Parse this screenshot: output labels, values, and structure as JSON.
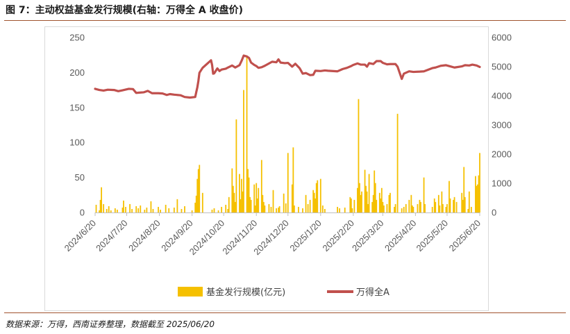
{
  "header": {
    "title": "图 7：主动权益基金发行规模(右轴：万得全 A 收盘价)"
  },
  "footer": {
    "source": "数据来源：万得，西南证券整理，数据截至 2025/06/20"
  },
  "chart_data": {
    "type": "bar+line",
    "x_tick_labels": [
      "2024/6/20",
      "2024/7/20",
      "2024/8/20",
      "2024/9/20",
      "2024/10/20",
      "2024/11/20",
      "2024/12/20",
      "2025/1/20",
      "2025/2/20",
      "2025/3/20",
      "2025/4/20",
      "2025/5/20",
      "2025/6/20"
    ],
    "y_left": {
      "ticks": [
        0,
        50,
        100,
        150,
        200,
        250
      ],
      "range": [
        0,
        250
      ]
    },
    "y_right": {
      "ticks": [
        0,
        1000,
        2000,
        3000,
        4000,
        5000,
        6000
      ],
      "range": [
        0,
        6000
      ]
    },
    "legend": {
      "position": "bottom"
    },
    "grid": false,
    "series": [
      {
        "name": "基金发行规模(亿元)",
        "type": "bar",
        "axis": "left",
        "color": "#f5c000",
        "points": [
          [
            "2024/6/21",
            11
          ],
          [
            "2024/6/24",
            3
          ],
          [
            "2024/6/25",
            18
          ],
          [
            "2024/6/26",
            36
          ],
          [
            "2024/6/28",
            12
          ],
          [
            "2024/7/1",
            5
          ],
          [
            "2024/7/3",
            9
          ],
          [
            "2024/7/5",
            3
          ],
          [
            "2024/7/9",
            6
          ],
          [
            "2024/7/11",
            4
          ],
          [
            "2024/7/16",
            7
          ],
          [
            "2024/7/17",
            17
          ],
          [
            "2024/7/19",
            8
          ],
          [
            "2024/7/23",
            12
          ],
          [
            "2024/7/25",
            5
          ],
          [
            "2024/7/29",
            9
          ],
          [
            "2024/7/31",
            6
          ],
          [
            "2024/8/2",
            10
          ],
          [
            "2024/8/6",
            4
          ],
          [
            "2024/8/8",
            7
          ],
          [
            "2024/8/12",
            16
          ],
          [
            "2024/8/14",
            5
          ],
          [
            "2024/8/19",
            8
          ],
          [
            "2024/8/21",
            4
          ],
          [
            "2024/8/26",
            11
          ],
          [
            "2024/8/29",
            6
          ],
          [
            "2024/9/3",
            7
          ],
          [
            "2024/9/6",
            19
          ],
          [
            "2024/9/10",
            5
          ],
          [
            "2024/9/13",
            9
          ],
          [
            "2024/9/20",
            3
          ],
          [
            "2024/9/23",
            14
          ],
          [
            "2024/9/24",
            24
          ],
          [
            "2024/9/25",
            48
          ],
          [
            "2024/9/26",
            62
          ],
          [
            "2024/9/27",
            68
          ],
          [
            "2024/9/30",
            28
          ],
          [
            "2024/10/9",
            4
          ],
          [
            "2024/10/11",
            6
          ],
          [
            "2024/10/15",
            3
          ],
          [
            "2024/10/18",
            8
          ],
          [
            "2024/10/22",
            11
          ],
          [
            "2024/10/24",
            5
          ],
          [
            "2024/10/25",
            22
          ],
          [
            "2024/10/28",
            63
          ],
          [
            "2024/10/29",
            38
          ],
          [
            "2024/10/30",
            28
          ],
          [
            "2024/10/31",
            15
          ],
          [
            "2024/11/1",
            133
          ],
          [
            "2024/11/4",
            55
          ],
          [
            "2024/11/5",
            19
          ],
          [
            "2024/11/6",
            48
          ],
          [
            "2024/11/7",
            30
          ],
          [
            "2024/11/8",
            175
          ],
          [
            "2024/11/11",
            222
          ],
          [
            "2024/11/12",
            62
          ],
          [
            "2024/11/13",
            50
          ],
          [
            "2024/11/14",
            22
          ],
          [
            "2024/11/15",
            18
          ],
          [
            "2024/11/18",
            40
          ],
          [
            "2024/11/19",
            10
          ],
          [
            "2024/11/20",
            42
          ],
          [
            "2024/11/21",
            20
          ],
          [
            "2024/11/22",
            35
          ],
          [
            "2024/11/25",
            75
          ],
          [
            "2024/11/26",
            25
          ],
          [
            "2024/11/27",
            15
          ],
          [
            "2024/11/28",
            10
          ],
          [
            "2024/12/2",
            12
          ],
          [
            "2024/12/4",
            8
          ],
          [
            "2024/12/6",
            32
          ],
          [
            "2024/12/9",
            6
          ],
          [
            "2024/12/11",
            7
          ],
          [
            "2024/12/12",
            9
          ],
          [
            "2024/12/16",
            27
          ],
          [
            "2024/12/18",
            13
          ],
          [
            "2024/12/20",
            85
          ],
          [
            "2024/12/24",
            40
          ],
          [
            "2024/12/25",
            93
          ],
          [
            "2024/12/26",
            10
          ],
          [
            "2024/12/30",
            8
          ],
          [
            "2025/1/3",
            6
          ],
          [
            "2025/1/6",
            25
          ],
          [
            "2025/1/8",
            12
          ],
          [
            "2025/1/10",
            18
          ],
          [
            "2025/1/13",
            32
          ],
          [
            "2025/1/14",
            28
          ],
          [
            "2025/1/15",
            20
          ],
          [
            "2025/1/16",
            42
          ],
          [
            "2025/1/17",
            46
          ],
          [
            "2025/1/20",
            48
          ],
          [
            "2025/1/22",
            10
          ],
          [
            "2025/1/24",
            5
          ],
          [
            "2025/2/5",
            8
          ],
          [
            "2025/2/7",
            6
          ],
          [
            "2025/2/12",
            7
          ],
          [
            "2025/2/17",
            22
          ],
          [
            "2025/2/18",
            20
          ],
          [
            "2025/2/19",
            6
          ],
          [
            "2025/2/21",
            18
          ],
          [
            "2025/2/24",
            35
          ],
          [
            "2025/2/25",
            162
          ],
          [
            "2025/2/26",
            42
          ],
          [
            "2025/2/27",
            25
          ],
          [
            "2025/2/28",
            30
          ],
          [
            "2025/3/3",
            61
          ],
          [
            "2025/3/4",
            38
          ],
          [
            "2025/3/5",
            30
          ],
          [
            "2025/3/6",
            12
          ],
          [
            "2025/3/7",
            55
          ],
          [
            "2025/3/10",
            15
          ],
          [
            "2025/3/11",
            25
          ],
          [
            "2025/3/12",
            60
          ],
          [
            "2025/3/13",
            42
          ],
          [
            "2025/3/14",
            18
          ],
          [
            "2025/3/17",
            28
          ],
          [
            "2025/3/18",
            20
          ],
          [
            "2025/3/19",
            35
          ],
          [
            "2025/3/20",
            15
          ],
          [
            "2025/3/21",
            10
          ],
          [
            "2025/3/24",
            12
          ],
          [
            "2025/3/26",
            25
          ],
          [
            "2025/3/27",
            28
          ],
          [
            "2025/3/31",
            8
          ],
          [
            "2025/4/1",
            12
          ],
          [
            "2025/4/3",
            141
          ],
          [
            "2025/4/7",
            6
          ],
          [
            "2025/4/9",
            8
          ],
          [
            "2025/4/11",
            12
          ],
          [
            "2025/4/14",
            18
          ],
          [
            "2025/4/16",
            25
          ],
          [
            "2025/4/17",
            10
          ],
          [
            "2025/4/18",
            8
          ],
          [
            "2025/4/22",
            12
          ],
          [
            "2025/4/24",
            18
          ],
          [
            "2025/4/25",
            15
          ],
          [
            "2025/4/28",
            50
          ],
          [
            "2025/4/29",
            12
          ],
          [
            "2025/5/6",
            8
          ],
          [
            "2025/5/8",
            20
          ],
          [
            "2025/5/9",
            15
          ],
          [
            "2025/5/12",
            25
          ],
          [
            "2025/5/13",
            10
          ],
          [
            "2025/5/15",
            30
          ],
          [
            "2025/5/16",
            12
          ],
          [
            "2025/5/19",
            8
          ],
          [
            "2025/5/20",
            12
          ],
          [
            "2025/5/22",
            45
          ],
          [
            "2025/5/23",
            20
          ],
          [
            "2025/5/26",
            18
          ],
          [
            "2025/5/27",
            22
          ],
          [
            "2025/5/29",
            15
          ],
          [
            "2025/6/3",
            28
          ],
          [
            "2025/6/4",
            18
          ],
          [
            "2025/6/5",
            65
          ],
          [
            "2025/6/6",
            22
          ],
          [
            "2025/6/9",
            5
          ],
          [
            "2025/6/10",
            30
          ],
          [
            "2025/6/12",
            8
          ],
          [
            "2025/6/16",
            52
          ],
          [
            "2025/6/17",
            38
          ],
          [
            "2025/6/18",
            40
          ],
          [
            "2025/6/19",
            53
          ],
          [
            "2025/6/20",
            85
          ]
        ]
      },
      {
        "name": "万得全A",
        "type": "line",
        "axis": "right",
        "color": "#c0504d",
        "points": [
          [
            "2024/6/20",
            4240
          ],
          [
            "2024/6/24",
            4200
          ],
          [
            "2024/6/28",
            4180
          ],
          [
            "2024/7/2",
            4210
          ],
          [
            "2024/7/8",
            4200
          ],
          [
            "2024/7/12",
            4160
          ],
          [
            "2024/7/16",
            4190
          ],
          [
            "2024/7/22",
            4240
          ],
          [
            "2024/7/26",
            4230
          ],
          [
            "2024/7/29",
            4100
          ],
          [
            "2024/8/1",
            4110
          ],
          [
            "2024/8/5",
            4120
          ],
          [
            "2024/8/9",
            4170
          ],
          [
            "2024/8/13",
            4090
          ],
          [
            "2024/8/19",
            4090
          ],
          [
            "2024/8/23",
            4080
          ],
          [
            "2024/8/27",
            4030
          ],
          [
            "2024/8/30",
            4060
          ],
          [
            "2024/9/3",
            4040
          ],
          [
            "2024/9/9",
            4020
          ],
          [
            "2024/9/13",
            3960
          ],
          [
            "2024/9/18",
            3940
          ],
          [
            "2024/9/23",
            3960
          ],
          [
            "2024/9/24",
            4130
          ],
          [
            "2024/9/25",
            4290
          ],
          [
            "2024/9/26",
            4510
          ],
          [
            "2024/9/27",
            4790
          ],
          [
            "2024/9/30",
            4960
          ],
          [
            "2024/10/8",
            5220
          ],
          [
            "2024/10/9",
            5060
          ],
          [
            "2024/10/10",
            4760
          ],
          [
            "2024/10/11",
            4770
          ],
          [
            "2024/10/14",
            4940
          ],
          [
            "2024/10/16",
            4850
          ],
          [
            "2024/10/18",
            4900
          ],
          [
            "2024/10/22",
            4930
          ],
          [
            "2024/10/24",
            4970
          ],
          [
            "2024/10/28",
            5040
          ],
          [
            "2024/10/31",
            4970
          ],
          [
            "2024/11/4",
            5050
          ],
          [
            "2024/11/6",
            5200
          ],
          [
            "2024/11/8",
            5380
          ],
          [
            "2024/11/11",
            5350
          ],
          [
            "2024/11/13",
            5300
          ],
          [
            "2024/11/15",
            5140
          ],
          [
            "2024/11/18",
            5060
          ],
          [
            "2024/11/20",
            5020
          ],
          [
            "2024/11/22",
            4960
          ],
          [
            "2024/11/25",
            4980
          ],
          [
            "2024/11/28",
            5030
          ],
          [
            "2024/12/2",
            5110
          ],
          [
            "2024/12/5",
            5170
          ],
          [
            "2024/12/9",
            5150
          ],
          [
            "2024/12/11",
            5250
          ],
          [
            "2024/12/13",
            5140
          ],
          [
            "2024/12/17",
            5120
          ],
          [
            "2024/12/20",
            5130
          ],
          [
            "2024/12/24",
            5000
          ],
          [
            "2024/12/27",
            5100
          ],
          [
            "2024/12/31",
            4950
          ],
          [
            "2025/1/3",
            4760
          ],
          [
            "2025/1/6",
            4780
          ],
          [
            "2025/1/10",
            4710
          ],
          [
            "2025/1/13",
            4720
          ],
          [
            "2025/1/15",
            4860
          ],
          [
            "2025/1/20",
            4850
          ],
          [
            "2025/1/24",
            4870
          ],
          [
            "2025/1/27",
            4860
          ],
          [
            "2025/2/5",
            4840
          ],
          [
            "2025/2/10",
            4920
          ],
          [
            "2025/2/14",
            4960
          ],
          [
            "2025/2/18",
            5020
          ],
          [
            "2025/2/20",
            5060
          ],
          [
            "2025/2/24",
            5110
          ],
          [
            "2025/2/27",
            5070
          ],
          [
            "2025/3/3",
            5070
          ],
          [
            "2025/3/5",
            5000
          ],
          [
            "2025/3/7",
            5120
          ],
          [
            "2025/3/11",
            5090
          ],
          [
            "2025/3/14",
            5190
          ],
          [
            "2025/3/18",
            5190
          ],
          [
            "2025/3/20",
            5130
          ],
          [
            "2025/3/24",
            5080
          ],
          [
            "2025/3/27",
            5090
          ],
          [
            "2025/4/1",
            5090
          ],
          [
            "2025/4/3",
            5000
          ],
          [
            "2025/4/7",
            4580
          ],
          [
            "2025/4/9",
            4760
          ],
          [
            "2025/4/14",
            4840
          ],
          [
            "2025/4/18",
            4820
          ],
          [
            "2025/4/24",
            4830
          ],
          [
            "2025/4/28",
            4840
          ],
          [
            "2025/5/6",
            4950
          ],
          [
            "2025/5/9",
            4970
          ],
          [
            "2025/5/14",
            5030
          ],
          [
            "2025/5/19",
            5050
          ],
          [
            "2025/5/23",
            5010
          ],
          [
            "2025/5/27",
            4970
          ],
          [
            "2025/6/3",
            5010
          ],
          [
            "2025/6/6",
            5050
          ],
          [
            "2025/6/10",
            5040
          ],
          [
            "2025/6/13",
            5070
          ],
          [
            "2025/6/17",
            5040
          ],
          [
            "2025/6/20",
            4990
          ]
        ]
      }
    ]
  }
}
